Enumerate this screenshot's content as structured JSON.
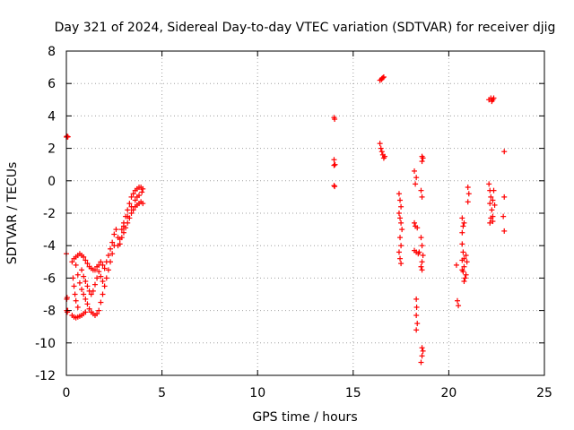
{
  "chart_data": {
    "type": "scatter",
    "title": "Day 321 of 2024, Sidereal Day-to-day VTEC variation (SDTVAR) for receiver djig",
    "xlabel": "GPS time / hours",
    "ylabel": "SDTVAR / TECUs",
    "xlim": [
      0,
      25
    ],
    "ylim": [
      -12,
      8
    ],
    "xticks": [
      0,
      5,
      10,
      15,
      20,
      25
    ],
    "yticks": [
      -12,
      -10,
      -8,
      -6,
      -4,
      -2,
      0,
      2,
      4,
      6,
      8
    ],
    "grid": true,
    "marker": "+",
    "color": "#ff0000",
    "series": [
      {
        "name": "SDTVAR",
        "points": [
          [
            0.0,
            2.7
          ],
          [
            0.03,
            2.75
          ],
          [
            0.06,
            2.7
          ],
          [
            0.08,
            2.72
          ],
          [
            0.0,
            -4.5
          ],
          [
            0.02,
            -7.3
          ],
          [
            0.04,
            -7.2
          ],
          [
            0.02,
            -8.0
          ],
          [
            0.05,
            -8.1
          ],
          [
            0.07,
            -8.0
          ],
          [
            0.3,
            -8.3
          ],
          [
            0.4,
            -8.4
          ],
          [
            0.5,
            -8.45
          ],
          [
            0.6,
            -8.4
          ],
          [
            0.7,
            -8.35
          ],
          [
            0.8,
            -8.3
          ],
          [
            0.9,
            -8.2
          ],
          [
            1.0,
            -8.1
          ],
          [
            0.35,
            -6.0
          ],
          [
            0.4,
            -6.5
          ],
          [
            0.45,
            -7.0
          ],
          [
            0.5,
            -7.4
          ],
          [
            0.6,
            -7.8
          ],
          [
            0.3,
            -5.0
          ],
          [
            0.4,
            -4.8
          ],
          [
            0.5,
            -4.7
          ],
          [
            0.6,
            -4.6
          ],
          [
            0.7,
            -4.5
          ],
          [
            0.8,
            -4.6
          ],
          [
            0.9,
            -4.7
          ],
          [
            1.0,
            -4.9
          ],
          [
            1.1,
            -5.1
          ],
          [
            1.2,
            -5.3
          ],
          [
            1.3,
            -5.4
          ],
          [
            1.4,
            -5.5
          ],
          [
            1.5,
            -5.5
          ],
          [
            1.6,
            -5.3
          ],
          [
            1.7,
            -5.2
          ],
          [
            1.8,
            -5.0
          ],
          [
            1.9,
            -5.2
          ],
          [
            2.0,
            -5.4
          ],
          [
            2.1,
            -5.0
          ],
          [
            2.2,
            -4.6
          ],
          [
            2.3,
            -4.2
          ],
          [
            2.4,
            -3.8
          ],
          [
            2.5,
            -3.3
          ],
          [
            2.6,
            -3.0
          ],
          [
            2.7,
            -3.5
          ],
          [
            0.5,
            -5.2
          ],
          [
            0.6,
            -5.8
          ],
          [
            0.7,
            -6.3
          ],
          [
            0.8,
            -6.7
          ],
          [
            0.9,
            -7.0
          ],
          [
            1.0,
            -7.3
          ],
          [
            1.1,
            -7.6
          ],
          [
            1.2,
            -7.9
          ],
          [
            1.3,
            -8.1
          ],
          [
            1.4,
            -8.2
          ],
          [
            1.5,
            -8.3
          ],
          [
            1.6,
            -8.2
          ],
          [
            1.7,
            -8.0
          ],
          [
            1.8,
            -7.5
          ],
          [
            1.9,
            -7.0
          ],
          [
            2.0,
            -6.5
          ],
          [
            2.1,
            -6.0
          ],
          [
            2.2,
            -5.5
          ],
          [
            2.3,
            -5.0
          ],
          [
            2.4,
            -4.5
          ],
          [
            2.5,
            -4.0
          ],
          [
            0.8,
            -5.5
          ],
          [
            0.9,
            -5.9
          ],
          [
            1.0,
            -6.2
          ],
          [
            1.1,
            -6.5
          ],
          [
            1.2,
            -6.8
          ],
          [
            1.3,
            -7.0
          ],
          [
            1.4,
            -6.8
          ],
          [
            1.5,
            -6.4
          ],
          [
            1.6,
            -6.0
          ],
          [
            1.7,
            -5.6
          ],
          [
            1.8,
            -5.9
          ],
          [
            1.9,
            -6.2
          ],
          [
            2.7,
            -4.0
          ],
          [
            2.8,
            -3.6
          ],
          [
            2.9,
            -3.0
          ],
          [
            3.0,
            -2.6
          ],
          [
            3.1,
            -2.2
          ],
          [
            3.2,
            -1.8
          ],
          [
            3.3,
            -1.4
          ],
          [
            3.4,
            -1.0
          ],
          [
            3.5,
            -0.8
          ],
          [
            3.6,
            -0.6
          ],
          [
            3.7,
            -0.5
          ],
          [
            3.8,
            -0.4
          ],
          [
            3.9,
            -0.4
          ],
          [
            4.0,
            -0.5
          ],
          [
            2.8,
            -3.9
          ],
          [
            2.9,
            -3.5
          ],
          [
            3.0,
            -3.2
          ],
          [
            3.1,
            -2.9
          ],
          [
            3.2,
            -2.6
          ],
          [
            3.3,
            -2.3
          ],
          [
            3.4,
            -2.0
          ],
          [
            3.5,
            -1.8
          ],
          [
            3.6,
            -1.6
          ],
          [
            3.7,
            -1.5
          ],
          [
            3.8,
            -1.4
          ],
          [
            3.9,
            -1.3
          ],
          [
            4.0,
            -1.4
          ],
          [
            3.0,
            -2.8
          ],
          [
            3.2,
            -2.2
          ],
          [
            3.4,
            -1.6
          ],
          [
            3.6,
            -1.2
          ],
          [
            3.8,
            -0.9
          ],
          [
            3.95,
            -0.7
          ],
          [
            3.7,
            -1.0
          ],
          [
            14.0,
            3.9
          ],
          [
            14.03,
            3.8
          ],
          [
            14.0,
            1.3
          ],
          [
            14.05,
            1.0
          ],
          [
            14.0,
            0.95
          ],
          [
            14.0,
            -0.3
          ],
          [
            14.03,
            -0.35
          ],
          [
            16.4,
            6.2
          ],
          [
            16.5,
            6.3
          ],
          [
            16.55,
            6.35
          ],
          [
            16.6,
            6.4
          ],
          [
            16.48,
            6.25
          ],
          [
            16.4,
            2.3
          ],
          [
            16.45,
            2.0
          ],
          [
            16.5,
            1.8
          ],
          [
            16.55,
            1.6
          ],
          [
            16.6,
            1.4
          ],
          [
            16.65,
            1.5
          ],
          [
            17.4,
            -0.8
          ],
          [
            17.45,
            -1.2
          ],
          [
            17.5,
            -1.6
          ],
          [
            17.4,
            -2.0
          ],
          [
            17.45,
            -2.3
          ],
          [
            17.5,
            -2.6
          ],
          [
            17.55,
            -3.0
          ],
          [
            17.45,
            -3.5
          ],
          [
            17.5,
            -4.0
          ],
          [
            17.4,
            -4.4
          ],
          [
            17.45,
            -4.8
          ],
          [
            17.5,
            -5.1
          ],
          [
            18.2,
            0.6
          ],
          [
            18.3,
            0.2
          ],
          [
            18.25,
            -0.2
          ],
          [
            18.2,
            -2.6
          ],
          [
            18.25,
            -2.8
          ],
          [
            18.35,
            -2.9
          ],
          [
            18.2,
            -4.3
          ],
          [
            18.3,
            -4.4
          ],
          [
            18.4,
            -4.5
          ],
          [
            18.45,
            -4.4
          ],
          [
            18.3,
            -7.3
          ],
          [
            18.32,
            -7.8
          ],
          [
            18.3,
            -8.3
          ],
          [
            18.35,
            -8.8
          ],
          [
            18.3,
            -9.2
          ],
          [
            18.6,
            1.5
          ],
          [
            18.65,
            1.4
          ],
          [
            18.6,
            1.2
          ],
          [
            18.55,
            -0.6
          ],
          [
            18.6,
            -1.0
          ],
          [
            18.55,
            -3.5
          ],
          [
            18.6,
            -4.0
          ],
          [
            18.65,
            -4.6
          ],
          [
            18.6,
            -5.0
          ],
          [
            18.55,
            -5.3
          ],
          [
            18.6,
            -5.5
          ],
          [
            18.6,
            -10.3
          ],
          [
            18.65,
            -10.5
          ],
          [
            18.6,
            -10.8
          ],
          [
            18.55,
            -11.2
          ],
          [
            20.4,
            -5.2
          ],
          [
            20.45,
            -7.4
          ],
          [
            20.5,
            -7.7
          ],
          [
            20.7,
            -2.3
          ],
          [
            20.75,
            -2.8
          ],
          [
            20.7,
            -3.2
          ],
          [
            20.8,
            -2.6
          ],
          [
            20.7,
            -3.9
          ],
          [
            20.75,
            -4.4
          ],
          [
            20.7,
            -4.9
          ],
          [
            20.8,
            -5.3
          ],
          [
            20.75,
            -5.6
          ],
          [
            20.85,
            -6.0
          ],
          [
            20.8,
            -6.2
          ],
          [
            20.9,
            -5.8
          ],
          [
            20.95,
            -5.0
          ],
          [
            20.9,
            -4.6
          ],
          [
            20.8,
            -4.8
          ],
          [
            20.7,
            -5.5
          ],
          [
            21.0,
            -0.4
          ],
          [
            21.05,
            -0.8
          ],
          [
            21.0,
            -1.3
          ],
          [
            22.1,
            -0.2
          ],
          [
            22.15,
            -0.6
          ],
          [
            22.2,
            -1.0
          ],
          [
            22.15,
            -1.4
          ],
          [
            22.25,
            -1.8
          ],
          [
            22.2,
            -2.3
          ],
          [
            22.15,
            -2.6
          ],
          [
            22.3,
            -2.2
          ],
          [
            22.3,
            -1.2
          ],
          [
            22.35,
            -0.6
          ],
          [
            22.4,
            -1.5
          ],
          [
            22.3,
            -2.5
          ],
          [
            22.1,
            5.0
          ],
          [
            22.2,
            5.1
          ],
          [
            22.3,
            5.0
          ],
          [
            22.25,
            4.9
          ],
          [
            22.35,
            5.1
          ],
          [
            22.9,
            1.8
          ],
          [
            22.9,
            -1.0
          ],
          [
            22.85,
            -2.2
          ],
          [
            22.9,
            -3.1
          ]
        ]
      }
    ]
  }
}
